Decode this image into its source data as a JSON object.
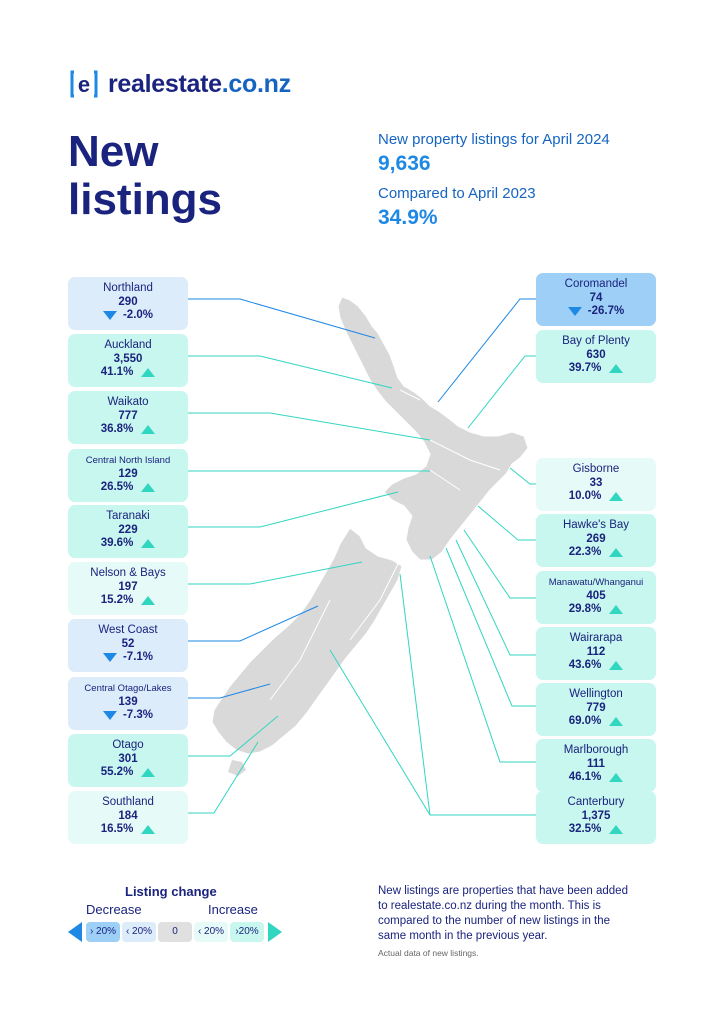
{
  "brand": {
    "name": "realestate",
    "tld": ".co.nz"
  },
  "title": "New listings",
  "stats": {
    "listings_label": "New property listings for April 2024",
    "listings_value": "9,636",
    "compare_label": "Compared to April 2023",
    "compare_value": "34.9%"
  },
  "regions_left": [
    {
      "name": "Northland",
      "count": "290",
      "change": "-2.0%",
      "dir": "down",
      "shade": "dec1"
    },
    {
      "name": "Auckland",
      "count": "3,550",
      "change": "41.1%",
      "dir": "up",
      "shade": "inc2"
    },
    {
      "name": "Waikato",
      "count": "777",
      "change": "36.8%",
      "dir": "up",
      "shade": "inc2"
    },
    {
      "name": "Central North Island",
      "count": "129",
      "change": "26.5%",
      "dir": "up",
      "shade": "inc2"
    },
    {
      "name": "Taranaki",
      "count": "229",
      "change": "39.6%",
      "dir": "up",
      "shade": "inc2"
    },
    {
      "name": "Nelson & Bays",
      "count": "197",
      "change": "15.2%",
      "dir": "up",
      "shade": "inc1"
    },
    {
      "name": "West Coast",
      "count": "52",
      "change": "-7.1%",
      "dir": "down",
      "shade": "dec1"
    },
    {
      "name": "Central Otago/Lakes",
      "count": "139",
      "change": "-7.3%",
      "dir": "down",
      "shade": "dec1"
    },
    {
      "name": "Otago",
      "count": "301",
      "change": "55.2%",
      "dir": "up",
      "shade": "inc2"
    },
    {
      "name": "Southland",
      "count": "184",
      "change": "16.5%",
      "dir": "up",
      "shade": "inc1"
    }
  ],
  "regions_right": [
    {
      "name": "Coromandel",
      "count": "74",
      "change": "-26.7%",
      "dir": "down",
      "shade": "dec2"
    },
    {
      "name": "Bay of Plenty",
      "count": "630",
      "change": "39.7%",
      "dir": "up",
      "shade": "inc2"
    },
    {
      "name": "Gisborne",
      "count": "33",
      "change": "10.0%",
      "dir": "up",
      "shade": "inc1"
    },
    {
      "name": "Hawke's Bay",
      "count": "269",
      "change": "22.3%",
      "dir": "up",
      "shade": "inc2"
    },
    {
      "name": "Manawatu/Whanganui",
      "count": "405",
      "change": "29.8%",
      "dir": "up",
      "shade": "inc2"
    },
    {
      "name": "Wairarapa",
      "count": "112",
      "change": "43.6%",
      "dir": "up",
      "shade": "inc2"
    },
    {
      "name": "Wellington",
      "count": "779",
      "change": "69.0%",
      "dir": "up",
      "shade": "inc2"
    },
    {
      "name": "Marlborough",
      "count": "111",
      "change": "46.1%",
      "dir": "up",
      "shade": "inc2"
    },
    {
      "name": "Canterbury",
      "count": "1,375",
      "change": "32.5%",
      "dir": "up",
      "shade": "inc2"
    }
  ],
  "legend": {
    "title": "Listing change",
    "decrease": "Decrease",
    "increase": "Increase",
    "chips": [
      "› 20%",
      "‹ 20%",
      "0",
      "‹ 20%",
      "›20%"
    ]
  },
  "note": "New listings are properties that have been added to realestate.co.nz during the month. This is compared to the number of new listings in the same month in the previous year.",
  "note_small": "Actual data of new listings.",
  "colors": {
    "navy": "#1a237e",
    "blue": "#1e88e5",
    "teal": "#31d6c1",
    "inc_strong": "#c8f7ef",
    "dec_strong": "#9ed0f7"
  }
}
